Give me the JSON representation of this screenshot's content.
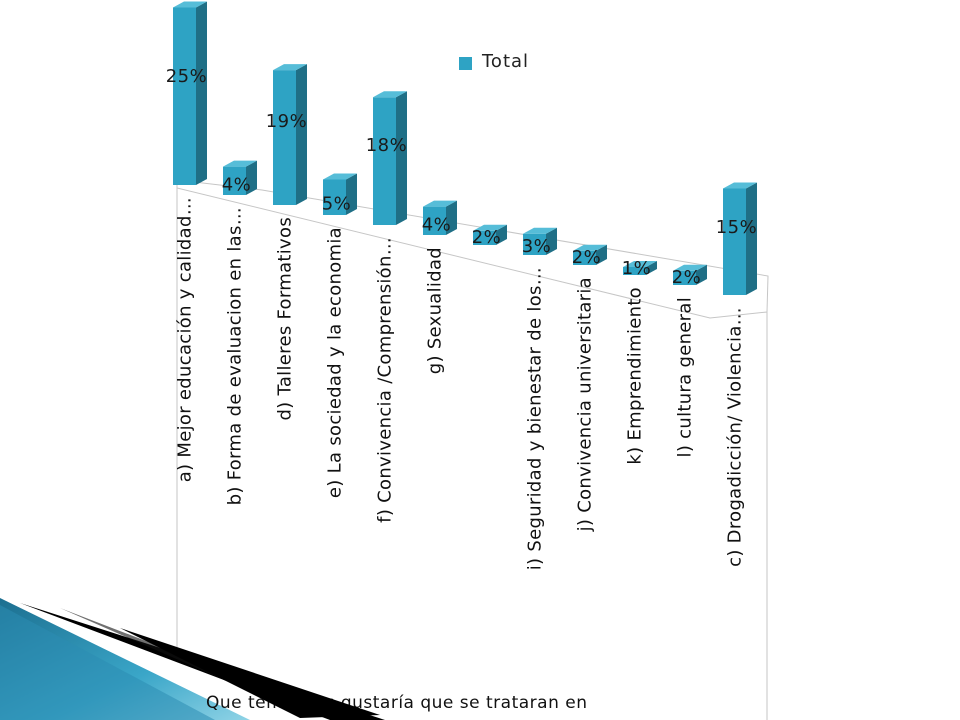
{
  "chart_data": {
    "type": "bar",
    "categories": [
      "a) Mejor educación y calidad…",
      "b) Forma de evaluacion en las…",
      "d) Talleres Formativos",
      "e) La sociedad y la economia",
      "f) Convivencia /Comprensión…",
      "g) Sexualidad",
      "",
      "i) Seguridad y bienestar de los…",
      "j) Convivencia universitaria",
      "k) Emprendimiento",
      "l) cultura general",
      "c) Drogadicción/ Violencia…"
    ],
    "series": [
      {
        "name": "Total",
        "values": [
          25,
          4,
          19,
          5,
          18,
          4,
          2,
          3,
          2,
          1,
          2,
          15
        ]
      }
    ],
    "data_labels": [
      "25%",
      "4%",
      "19%",
      "5%",
      "18%",
      "4%",
      "2%",
      "3%",
      "2%",
      "1%",
      "2%",
      "15%"
    ],
    "legend_position": "top-right",
    "grid": false,
    "ylim": [
      0,
      25
    ],
    "bar_color": "#2ea3c4",
    "bar_side_color": "#1f6f86",
    "bar_top_color": "#56bdd8"
  },
  "axis_title": "Que temas les gustaría que se trataran en"
}
